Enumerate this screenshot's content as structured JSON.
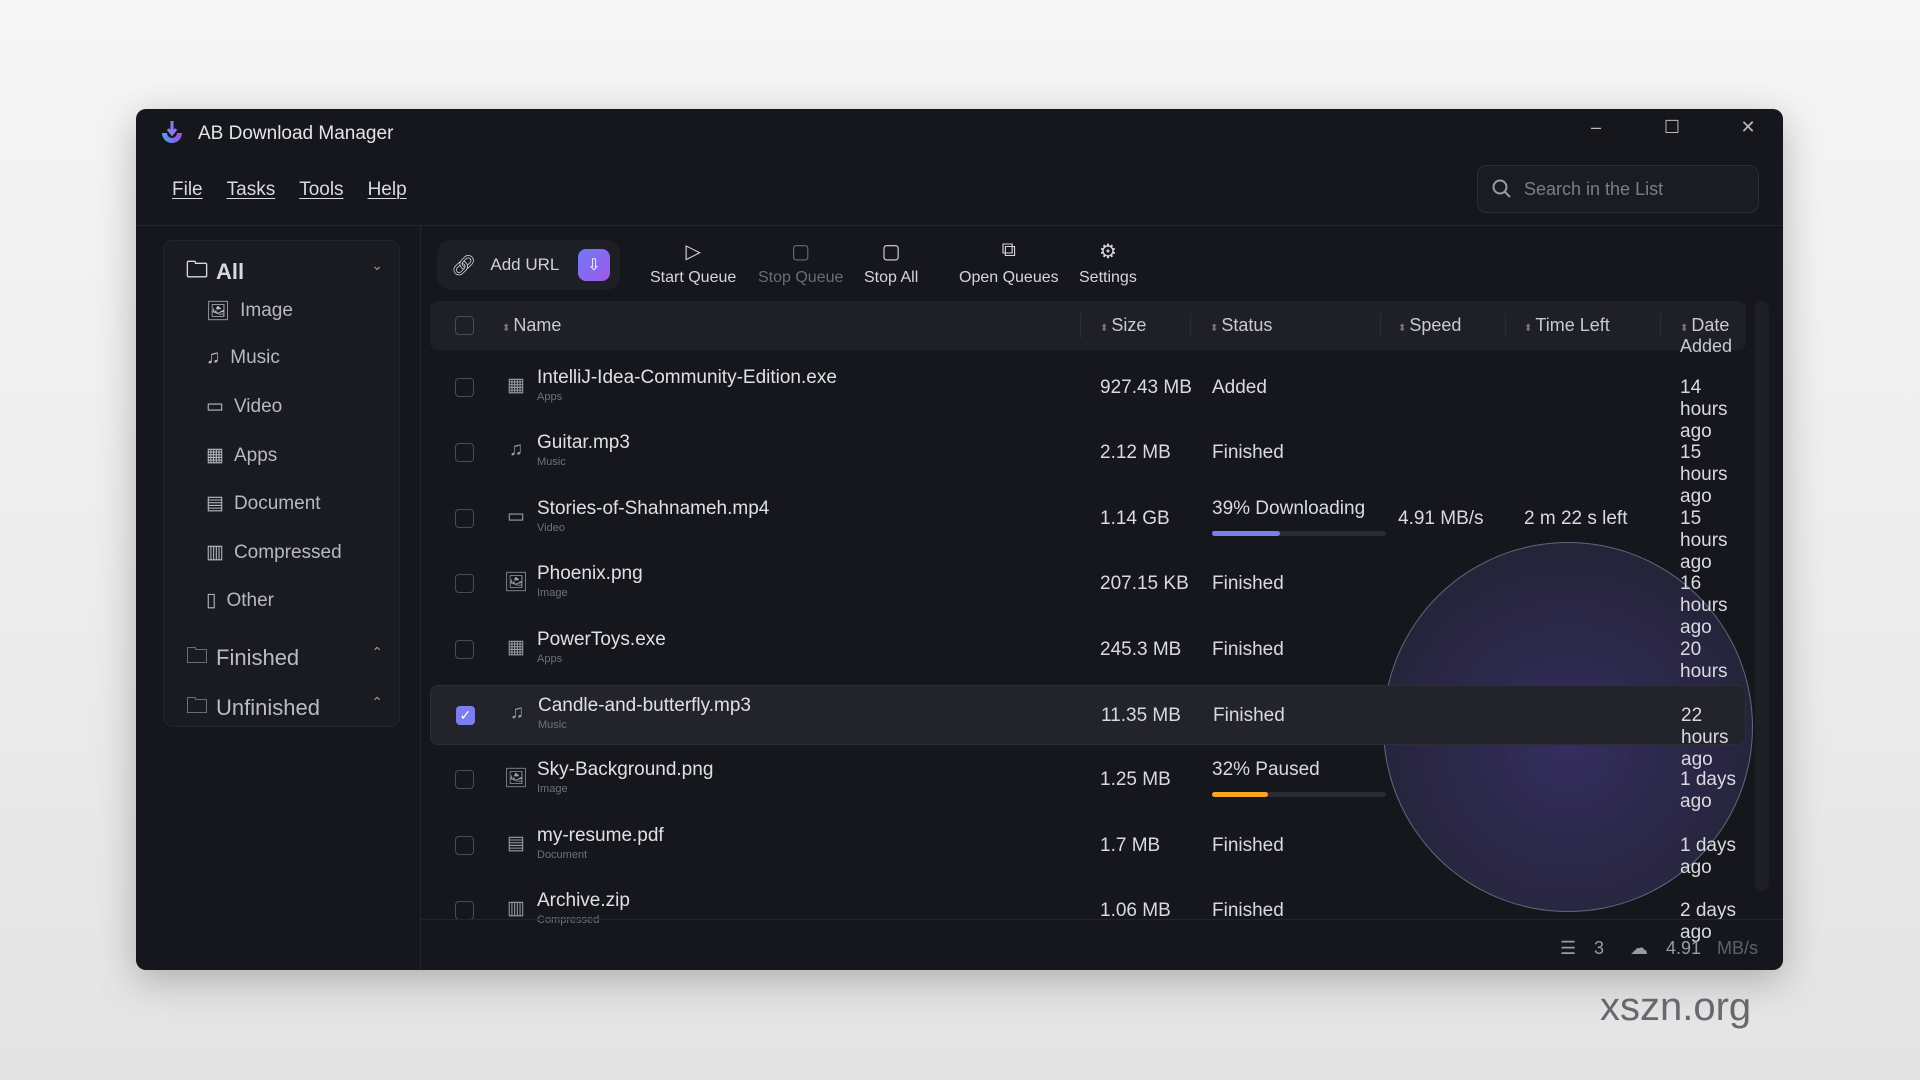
{
  "window": {
    "title": "AB Download Manager",
    "minimize": "–",
    "maximize": "☐",
    "close": "✕"
  },
  "menu": [
    "File",
    "Tasks",
    "Tools",
    "Help"
  ],
  "search": {
    "placeholder": "Search in the List"
  },
  "sidebar": {
    "all": "All",
    "categories": [
      {
        "label": "Image",
        "icon": "image-icon",
        "glyph": "🖼"
      },
      {
        "label": "Music",
        "icon": "music-icon",
        "glyph": "♫"
      },
      {
        "label": "Video",
        "icon": "video-icon",
        "glyph": "▭"
      },
      {
        "label": "Apps",
        "icon": "apps-icon",
        "glyph": "▦"
      },
      {
        "label": "Document",
        "icon": "document-icon",
        "glyph": "▤"
      },
      {
        "label": "Compressed",
        "icon": "compressed-icon",
        "glyph": "▥"
      },
      {
        "label": "Other",
        "icon": "other-icon",
        "glyph": "▯"
      }
    ],
    "finished": "Finished",
    "unfinished": "Unfinished"
  },
  "toolbar": {
    "add_url": "Add URL",
    "start_queue": "Start Queue",
    "stop_queue": "Stop Queue",
    "stop_all": "Stop All",
    "open_queues": "Open Queues",
    "settings": "Settings"
  },
  "columns": {
    "name": "Name",
    "size": "Size",
    "status": "Status",
    "speed": "Speed",
    "time_left": "Time Left",
    "date_added": "Date Added"
  },
  "rows": [
    {
      "name": "IntelliJ-Idea-Community-Edition.exe",
      "type": "Apps",
      "glyph": "▦",
      "size": "927.43 MB",
      "status": "Added",
      "speed": "",
      "time_left": "",
      "date": "14 hours ago",
      "checked": false
    },
    {
      "name": "Guitar.mp3",
      "type": "Music",
      "glyph": "♫",
      "size": "2.12 MB",
      "status": "Finished",
      "speed": "",
      "time_left": "",
      "date": "15 hours ago",
      "checked": false
    },
    {
      "name": "Stories-of-Shahnameh.mp4",
      "type": "Video",
      "glyph": "▭",
      "size": "1.14 GB",
      "status": "39% Downloading",
      "progress": 39,
      "bar_color": "#7b7ef0",
      "speed": "4.91 MB/s",
      "time_left": "2 m 22 s left",
      "date": "15 hours ago",
      "checked": false
    },
    {
      "name": "Phoenix.png",
      "type": "Image",
      "glyph": "🖼",
      "size": "207.15 KB",
      "status": "Finished",
      "speed": "",
      "time_left": "",
      "date": "16 hours ago",
      "checked": false
    },
    {
      "name": "PowerToys.exe",
      "type": "Apps",
      "glyph": "▦",
      "size": "245.3 MB",
      "status": "Finished",
      "speed": "",
      "time_left": "",
      "date": "20 hours ago",
      "checked": false
    },
    {
      "name": "Candle-and-butterfly.mp3",
      "type": "Music",
      "glyph": "♫",
      "size": "11.35 MB",
      "status": "Finished",
      "speed": "",
      "time_left": "",
      "date": "22 hours ago",
      "checked": true
    },
    {
      "name": "Sky-Background.png",
      "type": "Image",
      "glyph": "🖼",
      "size": "1.25 MB",
      "status": "32% Paused",
      "progress": 32,
      "bar_color": "#f5a623",
      "speed": "",
      "time_left": "",
      "date": "1 days ago",
      "checked": false
    },
    {
      "name": "my-resume.pdf",
      "type": "Document",
      "glyph": "▤",
      "size": "1.7 MB",
      "status": "Finished",
      "speed": "",
      "time_left": "",
      "date": "1 days ago",
      "checked": false
    },
    {
      "name": "Archive.zip",
      "type": "Compressed",
      "glyph": "▥",
      "size": "1.06 MB",
      "status": "Finished",
      "speed": "",
      "time_left": "",
      "date": "2 days ago",
      "checked": false
    }
  ],
  "status_bar": {
    "active_count": "3",
    "total_speed": "4.91",
    "speed_unit": "MB/s"
  },
  "watermark": "xszn.org"
}
